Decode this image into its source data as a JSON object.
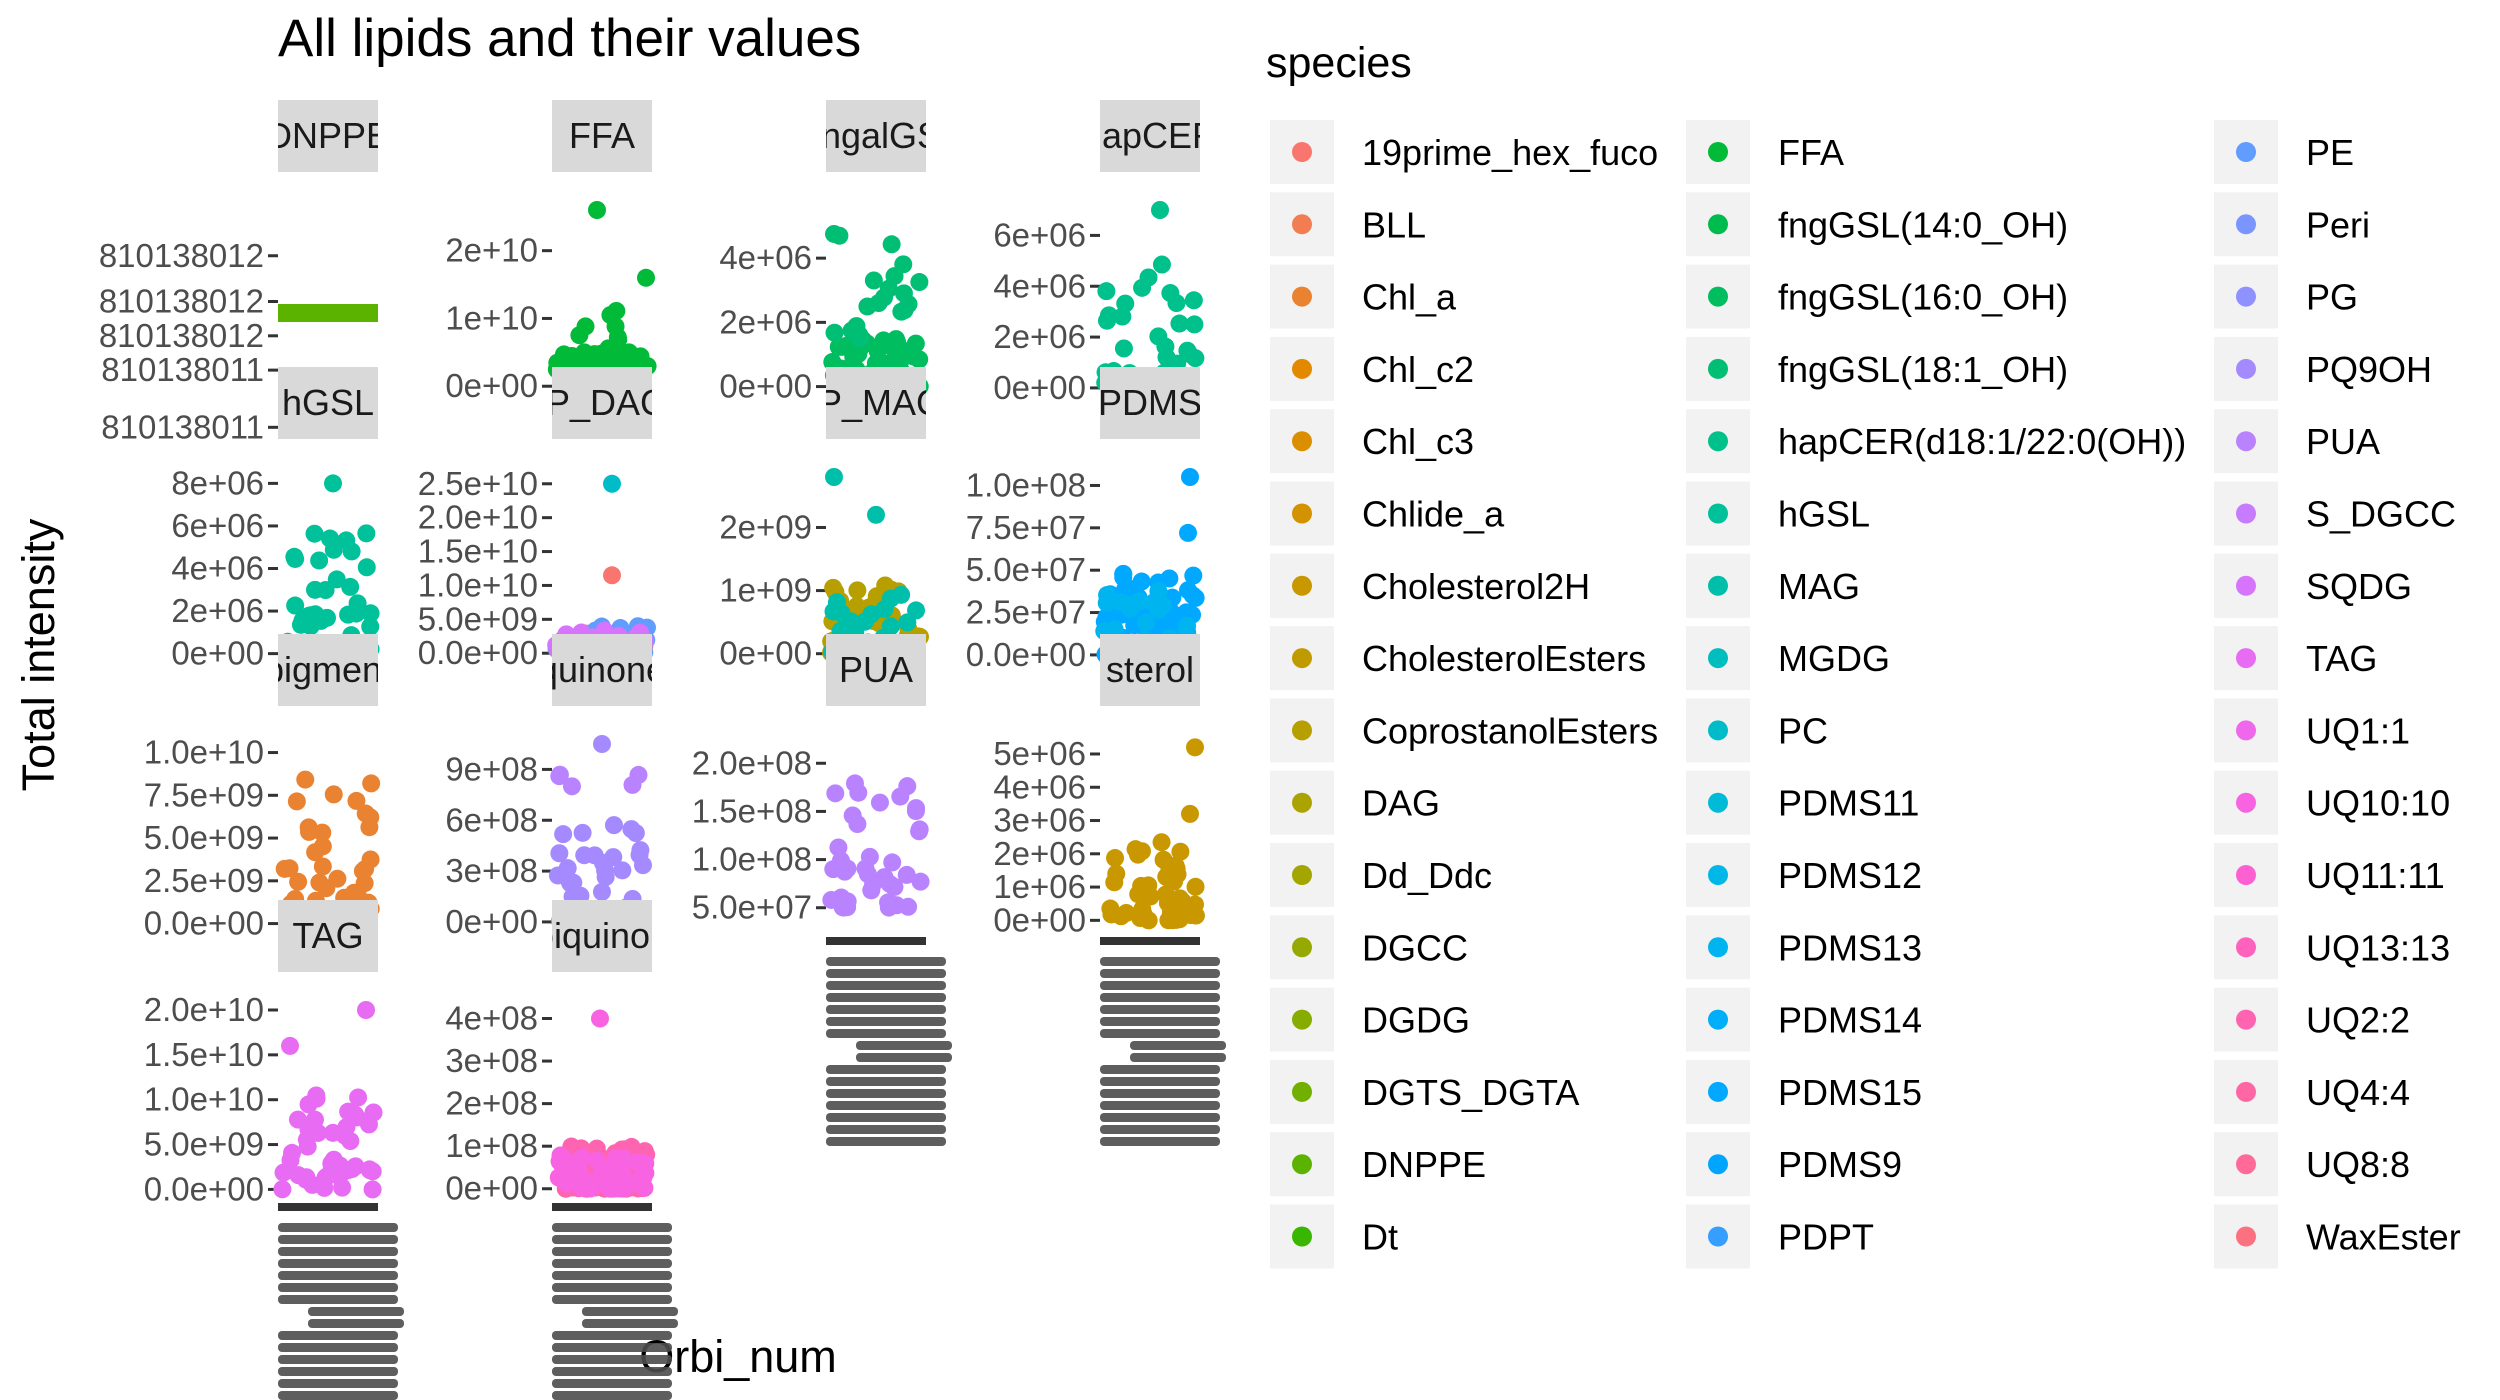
{
  "chart_data": {
    "type": "scatter",
    "title": "All lipids and their values",
    "xlabel": "Orbi_num",
    "ylabel": "Total intensity",
    "legend": {
      "title": "species",
      "placement": "right"
    },
    "colors": {
      "panel_bg": "#ffffff",
      "strip_bg": "#d9d9d9",
      "key_bg": "#f2f2f2",
      "tick_text": "#4d4d4d",
      "xtick_text": "#4d4d4d"
    },
    "species": [
      {
        "name": "19prime_hex_fuco",
        "color": "#F8766D"
      },
      {
        "name": "BLL",
        "color": "#F27D53"
      },
      {
        "name": "Chl_a",
        "color": "#EA8331"
      },
      {
        "name": "Chl_c2",
        "color": "#E38900"
      },
      {
        "name": "Chl_c3",
        "color": "#DB8E00"
      },
      {
        "name": "Chlide_a",
        "color": "#D39200"
      },
      {
        "name": "Cholesterol2H",
        "color": "#C99800"
      },
      {
        "name": "CholesterolEsters",
        "color": "#C09B00"
      },
      {
        "name": "CoprostanolEsters",
        "color": "#B79F00"
      },
      {
        "name": "DAG",
        "color": "#ABA300"
      },
      {
        "name": "Dd_Ddc",
        "color": "#A3A500"
      },
      {
        "name": "DGCC",
        "color": "#96A900"
      },
      {
        "name": "DGDG",
        "color": "#86AC00"
      },
      {
        "name": "DGTS_DGTA",
        "color": "#72B000"
      },
      {
        "name": "DNPPE",
        "color": "#5BB300"
      },
      {
        "name": "Dt",
        "color": "#39B600"
      },
      {
        "name": "FFA",
        "color": "#00BA38"
      },
      {
        "name": "fngGSL(14:0_OH)",
        "color": "#00BB4E"
      },
      {
        "name": "fngGSL(16:0_OH)",
        "color": "#00BD5F"
      },
      {
        "name": "fngGSL(18:1_OH)",
        "color": "#00BF74"
      },
      {
        "name": "hapCER(d18:1/22:0(OH))",
        "color": "#00C08B"
      },
      {
        "name": "hGSL",
        "color": "#00C19A"
      },
      {
        "name": "MAG",
        "color": "#00BFAA"
      },
      {
        "name": "MGDG",
        "color": "#00BEBE"
      },
      {
        "name": "PC",
        "color": "#00BCC8"
      },
      {
        "name": "PDMS11",
        "color": "#00BBD8"
      },
      {
        "name": "PDMS12",
        "color": "#00B8E7"
      },
      {
        "name": "PDMS13",
        "color": "#00B4F0"
      },
      {
        "name": "PDMS14",
        "color": "#00AEFA"
      },
      {
        "name": "PDMS15",
        "color": "#00A9FF"
      },
      {
        "name": "PDMS9",
        "color": "#00A5FF"
      },
      {
        "name": "PDPT",
        "color": "#359EFF"
      },
      {
        "name": "PE",
        "color": "#619CFF"
      },
      {
        "name": "Peri",
        "color": "#7B95FF"
      },
      {
        "name": "PG",
        "color": "#8F91FF"
      },
      {
        "name": "PQ9OH",
        "color": "#A58AFF"
      },
      {
        "name": "PUA",
        "color": "#B983FF"
      },
      {
        "name": "S_DGCC",
        "color": "#C77CFF"
      },
      {
        "name": "SQDG",
        "color": "#D774FD"
      },
      {
        "name": "TAG",
        "color": "#E76BF3"
      },
      {
        "name": "UQ1:1",
        "color": "#EF67EB"
      },
      {
        "name": "UQ10:10",
        "color": "#F763E0"
      },
      {
        "name": "UQ11:11",
        "color": "#FD61D1"
      },
      {
        "name": "UQ13:13",
        "color": "#FF62BC"
      },
      {
        "name": "UQ2:2",
        "color": "#FF64B0"
      },
      {
        "name": "UQ4:4",
        "color": "#FF67A4"
      },
      {
        "name": "UQ8:8",
        "color": "#FF6A98"
      },
      {
        "name": "WaxEster",
        "color": "#FC717F"
      }
    ],
    "panels": [
      {
        "strip": "DNPPE",
        "ylim": [
          810138010.8,
          810138012.4
        ],
        "yticks": [
          {
            "v": 810138012.0,
            "label": "810138012"
          },
          {
            "v": 810138011.6,
            "label": "810138012"
          },
          {
            "v": 810138011.3,
            "label": "810138012"
          },
          {
            "v": 810138011.0,
            "label": "810138011"
          },
          {
            "v": 810138010.5,
            "label": "810138011"
          }
        ],
        "groups": [
          {
            "color": "#5BB300",
            "n": 0,
            "min": 0,
            "max": 0
          }
        ],
        "hline": {
          "v": 810138011.5,
          "color": "#5BB300"
        }
      },
      {
        "strip": "FFA",
        "ylim": [
          -1000000000.0,
          26000000000.0
        ],
        "yticks": [
          {
            "v": 20000000000.0,
            "label": "2e+10"
          },
          {
            "v": 10000000000.0,
            "label": "1e+10"
          },
          {
            "v": 0,
            "label": "0e+00"
          }
        ],
        "groups": [
          {
            "color": "#00BA38",
            "n": 60,
            "min": 2000000000.0,
            "max": 5000000000.0
          },
          {
            "color": "#00BA38",
            "n": 10,
            "min": 5000000000.0,
            "max": 12000000000.0
          }
        ],
        "outliers": [
          {
            "x": 0.45,
            "y": 26000000000.0,
            "color": "#00BA38"
          },
          {
            "x": 0.94,
            "y": 16000000000.0,
            "color": "#00BA38"
          }
        ]
      },
      {
        "strip": "fungalGSL",
        "ylim": [
          -200000.0,
          5500000.0
        ],
        "yticks": [
          {
            "v": 4000000.0,
            "label": "4e+06"
          },
          {
            "v": 2000000.0,
            "label": "2e+06"
          },
          {
            "v": 0,
            "label": "0e+00"
          }
        ],
        "groups": [
          {
            "color": "#00BD5F",
            "n": 70,
            "min": 0,
            "max": 1500000.0
          },
          {
            "color": "#00BF74",
            "n": 20,
            "min": 1500000.0,
            "max": 4800000.0
          }
        ]
      },
      {
        "strip": "hapCER",
        "ylim": [
          -200000.0,
          7000000.0
        ],
        "yticks": [
          {
            "v": 6000000.0,
            "label": "6e+06"
          },
          {
            "v": 4000000.0,
            "label": "4e+06"
          },
          {
            "v": 2000000.0,
            "label": "2e+06"
          },
          {
            "v": 0,
            "label": "0e+00"
          }
        ],
        "groups": [
          {
            "color": "#00C08B",
            "n": 35,
            "min": 0,
            "max": 5000000.0
          }
        ],
        "outliers": [
          {
            "x": 0.6,
            "y": 7000000.0,
            "color": "#00C08B"
          }
        ]
      },
      {
        "strip": "hGSL",
        "ylim": [
          -300000.0,
          8300000.0
        ],
        "yticks": [
          {
            "v": 8000000.0,
            "label": "8e+06"
          },
          {
            "v": 6000000.0,
            "label": "6e+06"
          },
          {
            "v": 4000000.0,
            "label": "4e+06"
          },
          {
            "v": 2000000.0,
            "label": "2e+06"
          },
          {
            "v": 0,
            "label": "0e+00"
          }
        ],
        "groups": [
          {
            "color": "#00C19A",
            "n": 40,
            "min": 0,
            "max": 6000000.0
          }
        ],
        "outliers": [
          {
            "x": 0.55,
            "y": 8000000.0,
            "color": "#00C19A"
          }
        ]
      },
      {
        "strip": "IP_DAG",
        "ylim": [
          -1000000000.0,
          26000000000.0
        ],
        "yticks": [
          {
            "v": 25000000000.0,
            "label": "2.5e+10"
          },
          {
            "v": 20000000000.0,
            "label": "2.0e+10"
          },
          {
            "v": 15000000000.0,
            "label": "1.5e+10"
          },
          {
            "v": 10000000000.0,
            "label": "1.0e+10"
          },
          {
            "v": 5000000000.0,
            "label": "5.0e+09"
          },
          {
            "v": 0,
            "label": "0.0e+00"
          }
        ],
        "groups": [
          {
            "color": "#F8766D",
            "n": 40,
            "min": 0,
            "max": 3000000000.0
          },
          {
            "color": "#619CFF",
            "n": 40,
            "min": 0,
            "max": 4000000000.0
          },
          {
            "color": "#C77CFF",
            "n": 30,
            "min": 0,
            "max": 3000000000.0
          },
          {
            "color": "#D774FD",
            "n": 20,
            "min": 0,
            "max": 4000000000.0
          }
        ],
        "outliers": [
          {
            "x": 0.6,
            "y": 25000000000.0,
            "color": "#00BCC8"
          },
          {
            "x": 0.6,
            "y": 11500000000.0,
            "color": "#F8766D"
          }
        ]
      },
      {
        "strip": "IP_MAG",
        "ylim": [
          -100000000.0,
          2800000000.0
        ],
        "yticks": [
          {
            "v": 2000000000.0,
            "label": "2e+09"
          },
          {
            "v": 1000000000.0,
            "label": "1e+09"
          },
          {
            "v": 0,
            "label": "0e+00"
          }
        ],
        "groups": [
          {
            "color": "#B79F00",
            "n": 50,
            "min": 0,
            "max": 1200000000.0
          },
          {
            "color": "#00BFAA",
            "n": 30,
            "min": 0,
            "max": 1000000000.0
          }
        ],
        "outliers": [
          {
            "x": 0.08,
            "y": 2800000000.0,
            "color": "#00BFAA"
          },
          {
            "x": 0.5,
            "y": 2200000000.0,
            "color": "#00BFAA"
          }
        ]
      },
      {
        "strip": "PDMS",
        "ylim": [
          -3000000.0,
          105000000.0
        ],
        "yticks": [
          {
            "v": 100000000.0,
            "label": "1.0e+08"
          },
          {
            "v": 75000000.0,
            "label": "7.5e+07"
          },
          {
            "v": 50000000.0,
            "label": "5.0e+07"
          },
          {
            "v": 25000000.0,
            "label": "2.5e+07"
          },
          {
            "v": 0,
            "label": "0.0e+00"
          }
        ],
        "groups": [
          {
            "color": "#00A9FF",
            "n": 60,
            "min": 0,
            "max": 50000000.0
          },
          {
            "color": "#00B4F0",
            "n": 30,
            "min": 0,
            "max": 40000000.0
          }
        ],
        "outliers": [
          {
            "x": 0.9,
            "y": 105000000.0,
            "color": "#00A5FF"
          },
          {
            "x": 0.88,
            "y": 72000000.0,
            "color": "#00A9FF"
          }
        ]
      },
      {
        "strip": "pigment",
        "ylim": [
          -200000000.0,
          10500000000.0
        ],
        "yticks": [
          {
            "v": 10000000000.0,
            "label": "1.0e+10"
          },
          {
            "v": 7500000000.0,
            "label": "7.5e+09"
          },
          {
            "v": 5000000000.0,
            "label": "5.0e+09"
          },
          {
            "v": 2500000000.0,
            "label": "2.5e+09"
          },
          {
            "v": 0,
            "label": "0.0e+00"
          }
        ],
        "groups": [
          {
            "color": "#EA8331",
            "n": 40,
            "min": 0,
            "max": 9000000000.0
          }
        ],
        "hline": {
          "v": 100000000.0,
          "color": "#7B95FF"
        }
      },
      {
        "strip": "quinone",
        "ylim": [
          -30000000.0,
          1050000000.0
        ],
        "yticks": [
          {
            "v": 900000000.0,
            "label": "9e+08"
          },
          {
            "v": 600000000.0,
            "label": "6e+08"
          },
          {
            "v": 300000000.0,
            "label": "3e+08"
          },
          {
            "v": 0,
            "label": "0e+00"
          }
        ],
        "groups": [
          {
            "color": "#A58AFF",
            "n": 45,
            "min": 0,
            "max": 600000000.0
          },
          {
            "color": "#B983FF",
            "n": 5,
            "min": 800000000.0,
            "max": 900000000.0
          }
        ],
        "outliers": [
          {
            "x": 0.5,
            "y": 1050000000.0,
            "color": "#A58AFF"
          }
        ]
      },
      {
        "strip": "PUA",
        "ylim": [
          30000000.0,
          220000000.0
        ],
        "yticks": [
          {
            "v": 200000000.0,
            "label": "2.0e+08"
          },
          {
            "v": 150000000.0,
            "label": "1.5e+08"
          },
          {
            "v": 100000000.0,
            "label": "1.0e+08"
          },
          {
            "v": 50000000.0,
            "label": "5.0e+07"
          }
        ],
        "groups": [
          {
            "color": "#B983FF",
            "n": 40,
            "min": 50000000.0,
            "max": 180000000.0
          }
        ]
      },
      {
        "strip": "sterol",
        "ylim": [
          -200000.0,
          5300000.0
        ],
        "yticks": [
          {
            "v": 5000000.0,
            "label": "5e+06"
          },
          {
            "v": 4000000.0,
            "label": "4e+06"
          },
          {
            "v": 3000000.0,
            "label": "3e+06"
          },
          {
            "v": 2000000.0,
            "label": "2e+06"
          },
          {
            "v": 1000000.0,
            "label": "1e+06"
          },
          {
            "v": 0,
            "label": "0e+00"
          }
        ],
        "groups": [
          {
            "color": "#C99800",
            "n": 45,
            "min": 0,
            "max": 2500000.0
          }
        ],
        "outliers": [
          {
            "x": 0.95,
            "y": 5200000.0,
            "color": "#C99800"
          },
          {
            "x": 0.9,
            "y": 3200000.0,
            "color": "#C99800"
          }
        ]
      },
      {
        "strip": "TAG",
        "ylim": [
          -400000000.0,
          20000000000.0
        ],
        "yticks": [
          {
            "v": 20000000000.0,
            "label": "2.0e+10"
          },
          {
            "v": 15000000000.0,
            "label": "1.5e+10"
          },
          {
            "v": 10000000000.0,
            "label": "1.0e+10"
          },
          {
            "v": 5000000000.0,
            "label": "5.0e+09"
          },
          {
            "v": 0,
            "label": "0.0e+00"
          }
        ],
        "groups": [
          {
            "color": "#E76BF3",
            "n": 45,
            "min": 0,
            "max": 12000000000.0
          }
        ],
        "outliers": [
          {
            "x": 0.12,
            "y": 16000000000.0,
            "color": "#E76BF3"
          },
          {
            "x": 0.88,
            "y": 20000000000.0,
            "color": "#E76BF3"
          }
        ]
      },
      {
        "strip": "ubiquinone",
        "ylim": [
          -10000000.0,
          420000000.0
        ],
        "yticks": [
          {
            "v": 400000000.0,
            "label": "4e+08"
          },
          {
            "v": 300000000.0,
            "label": "3e+08"
          },
          {
            "v": 200000000.0,
            "label": "2e+08"
          },
          {
            "v": 100000000.0,
            "label": "1e+08"
          },
          {
            "v": 0,
            "label": "0e+00"
          }
        ],
        "groups": [
          {
            "color": "#FF64B0",
            "n": 80,
            "min": 0,
            "max": 100000000.0
          },
          {
            "color": "#F763E0",
            "n": 40,
            "min": 0,
            "max": 80000000.0
          }
        ],
        "outliers": [
          {
            "x": 0.48,
            "y": 400000000.0,
            "color": "#F763E0"
          }
        ]
      }
    ]
  }
}
